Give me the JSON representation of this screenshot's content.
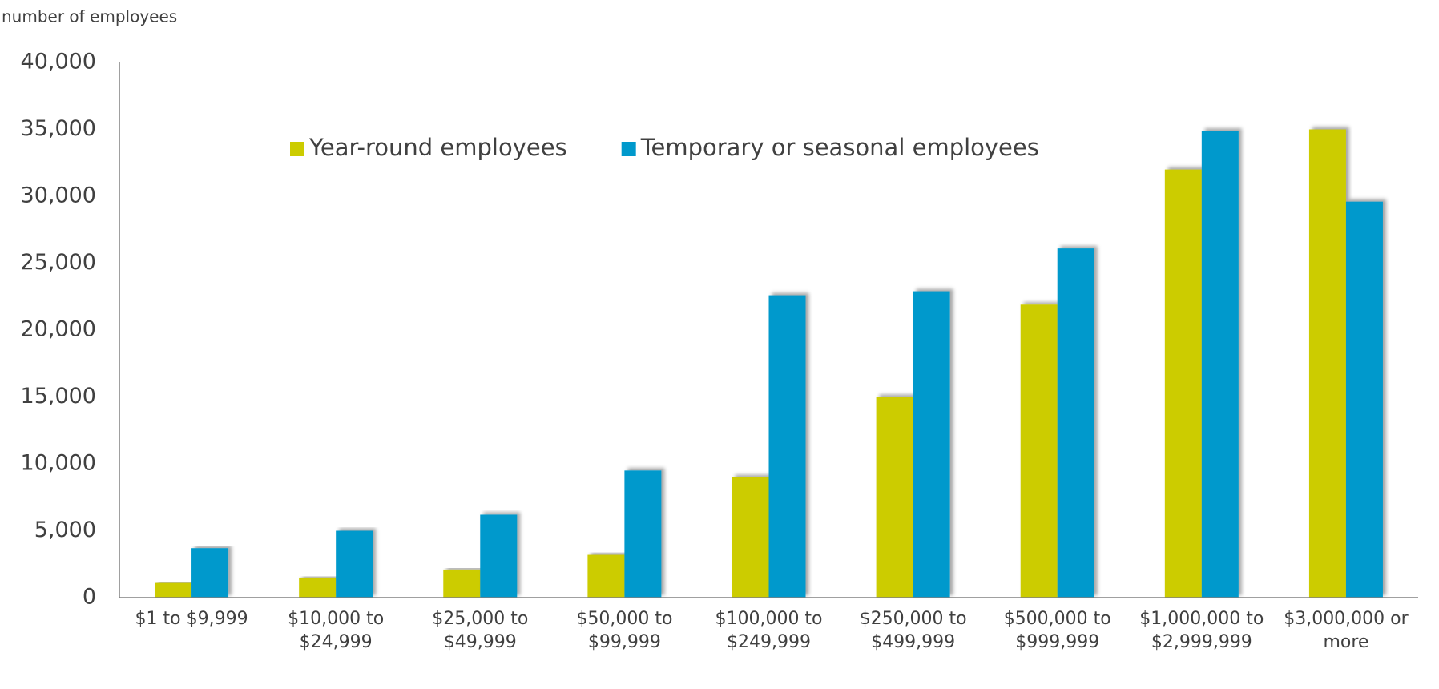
{
  "chart_data": {
    "type": "bar",
    "y_axis_label": "number of employees",
    "categories": [
      "$1 to $9,999",
      "$10,000 to $24,999",
      "$25,000 to $49,999",
      "$50,000 to $99,999",
      "$100,000 to $249,999",
      "$250,000 to $499,999",
      "$500,000 to $999,999",
      "$1,000,000 to $2,999,999",
      "$3,000,000 or more"
    ],
    "series": [
      {
        "name": "Year-round employees",
        "color": "#cccc00",
        "values": [
          1100,
          1500,
          2100,
          3200,
          9000,
          15000,
          21900,
          32000,
          35000
        ]
      },
      {
        "name": "Temporary or seasonal employees",
        "color": "#0099cc",
        "values": [
          3700,
          5000,
          6200,
          9500,
          22600,
          22900,
          26100,
          34900,
          29600
        ]
      }
    ],
    "ylim": [
      0,
      40000
    ],
    "yticks": [
      0,
      {
        "value": 5000,
        "label": "5,000"
      },
      {
        "value": 10000,
        "label": "10,000"
      },
      {
        "value": 15000,
        "label": "15,000"
      },
      {
        "value": 20000,
        "label": "20,000"
      },
      {
        "value": 25000,
        "label": "25,000"
      },
      {
        "value": 30000,
        "label": "30,000"
      },
      {
        "value": 35000,
        "label": "35,000"
      },
      {
        "value": 40000,
        "label": "40,000"
      }
    ],
    "legend": "top"
  }
}
